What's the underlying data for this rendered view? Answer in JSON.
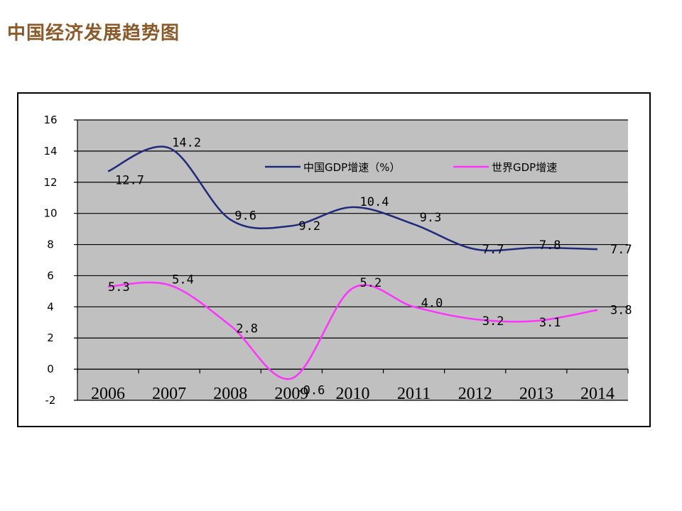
{
  "page": {
    "title": "中国经济发展趋势图"
  },
  "chart_data": {
    "type": "line",
    "title": "",
    "xlabel": "",
    "ylabel": "",
    "categories": [
      "2006",
      "2007",
      "2008",
      "2009",
      "2010",
      "2011",
      "2012",
      "2013",
      "2014"
    ],
    "ylim": [
      -2,
      16
    ],
    "yticks": [
      "16",
      "14",
      "12",
      "10",
      "8",
      "6",
      "4",
      "2",
      "0",
      "-2"
    ],
    "grid": true,
    "legend_position": "top-right",
    "series": [
      {
        "name": "中国GDP增速（%）",
        "color": "#1F2A7A",
        "values": [
          12.7,
          14.2,
          9.6,
          9.2,
          10.4,
          9.3,
          7.7,
          7.8,
          7.7
        ],
        "labels": [
          "12.7",
          "14.2",
          "9.6",
          "9.2",
          "10.4",
          "9.3",
          "7.7",
          "7.8",
          "7.7"
        ]
      },
      {
        "name": "世界GDP增速",
        "color": "#FF33FF",
        "values": [
          5.3,
          5.4,
          2.8,
          -0.6,
          5.2,
          4.0,
          3.2,
          3.1,
          3.8
        ],
        "labels": [
          "5.3",
          "5.4",
          "2.8",
          "-0.6",
          "5.2",
          "4.0",
          "3.2",
          "3.1",
          "3.8"
        ]
      }
    ]
  }
}
